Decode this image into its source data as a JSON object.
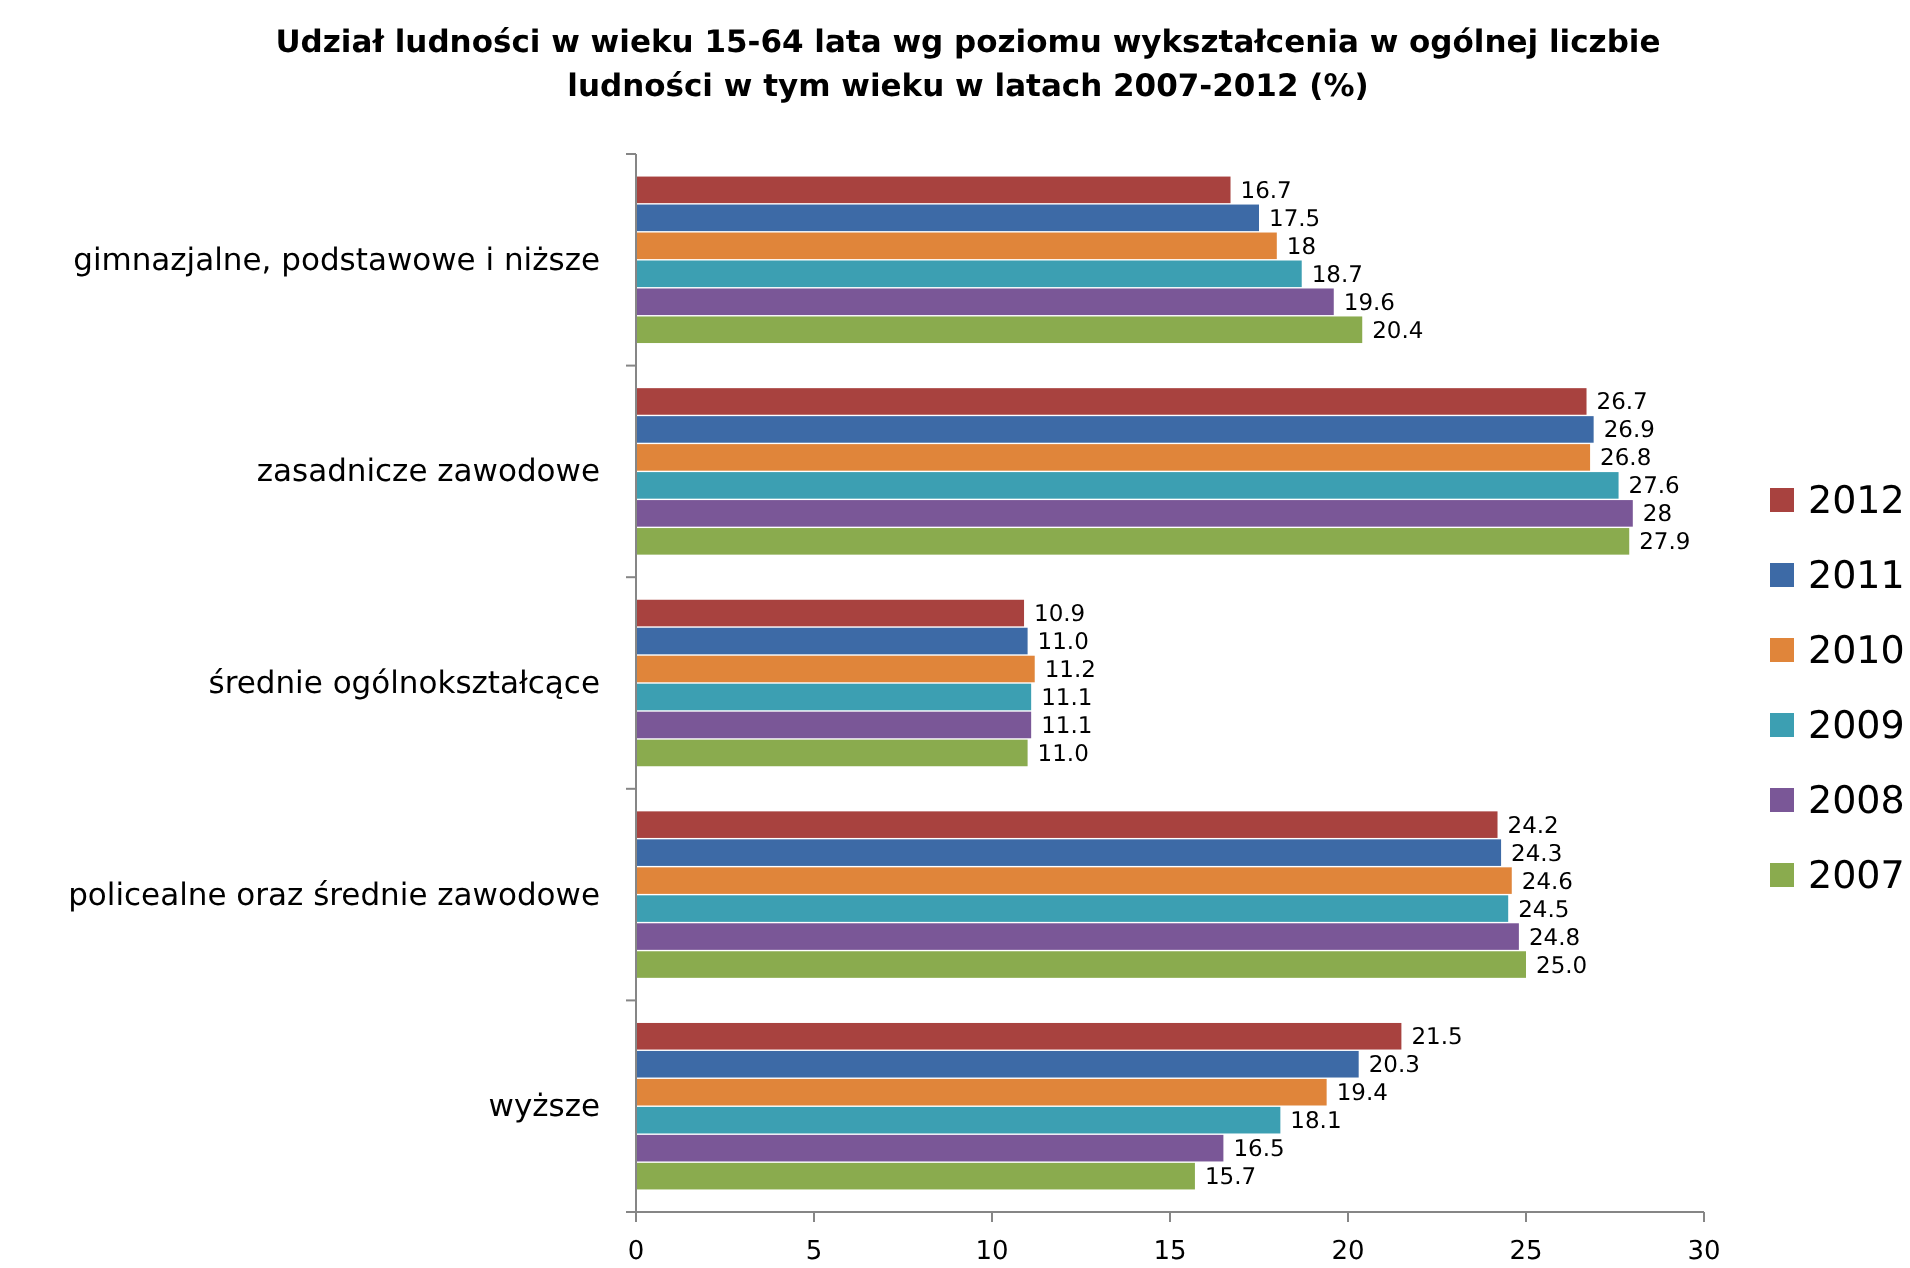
{
  "chart_data": {
    "type": "bar",
    "orientation": "horizontal",
    "title": "Udział ludności w wieku 15-64 lata wg poziomu wykształcenia w ogólnej liczbie ludności w tym wieku w latach 2007-2012 (%)",
    "categories": [
      "gimnazjalne, podstawowe i niższe",
      "zasadnicze zawodowe",
      "średnie ogólnokształcące",
      "policealne oraz średnie zawodowe",
      "wyższe"
    ],
    "series": [
      {
        "name": "2012",
        "color": "#a8423f",
        "values": [
          16.7,
          26.7,
          10.9,
          24.2,
          21.5
        ],
        "value_labels": [
          "16.7",
          "26.7",
          "10.9",
          "24.2",
          "21.5"
        ]
      },
      {
        "name": "2011",
        "color": "#3d6aa6",
        "values": [
          17.5,
          26.9,
          11.0,
          24.3,
          20.3
        ],
        "value_labels": [
          "17.5",
          "26.9",
          "11.0",
          "24.3",
          "20.3"
        ]
      },
      {
        "name": "2010",
        "color": "#e0853a",
        "values": [
          18,
          26.8,
          11.2,
          24.6,
          19.4
        ],
        "value_labels": [
          "18",
          "26.8",
          "11.2",
          "24.6",
          "19.4"
        ]
      },
      {
        "name": "2009",
        "color": "#3c9fb2",
        "values": [
          18.7,
          27.6,
          11.1,
          24.5,
          18.1
        ],
        "value_labels": [
          "18.7",
          "27.6",
          "11.1",
          "24.5",
          "18.1"
        ]
      },
      {
        "name": "2008",
        "color": "#7a5797",
        "values": [
          19.6,
          28,
          11.1,
          24.8,
          16.5
        ],
        "value_labels": [
          "19.6",
          "28",
          "11.1",
          "24.8",
          "16.5"
        ]
      },
      {
        "name": "2007",
        "color": "#8aab4e",
        "values": [
          20.4,
          27.9,
          11.0,
          25.0,
          15.7
        ],
        "value_labels": [
          "20.4",
          "27.9",
          "11.0",
          "25.0",
          "15.7"
        ]
      }
    ],
    "xlim": [
      0,
      30
    ],
    "xticks": [
      0,
      5,
      10,
      15,
      20,
      25,
      30
    ],
    "grid": false,
    "legend": "right"
  }
}
